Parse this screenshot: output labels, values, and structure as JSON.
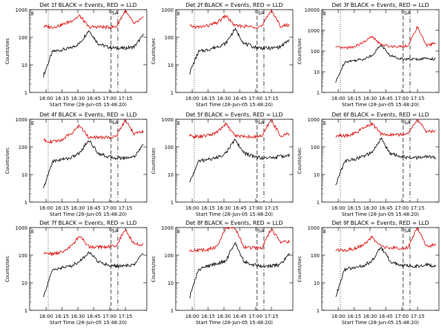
{
  "chart_data": [
    {
      "type": "line",
      "title": "Det 1f BLACK = Events, RED = LLD",
      "xlabel": "Start Time (28-Jun-05 15:48:20)",
      "ylabel": "Counts/sec",
      "ylim": [
        1,
        1000
      ],
      "yscale": "log",
      "x_ticks": [
        "16:00",
        "16:15",
        "16:30",
        "16:45",
        "17:00",
        "17:15"
      ],
      "y_ticks": [
        "1",
        "10",
        "100",
        "1000"
      ],
      "series": [
        {
          "name": "Events",
          "color": "#000000",
          "values": [
            4,
            30,
            35,
            40,
            60,
            180,
            60,
            45,
            40,
            40,
            45,
            120
          ]
        },
        {
          "name": "LLD",
          "color": "#dd0000",
          "values": [
            250,
            230,
            280,
            380,
            600,
            230,
            240,
            230,
            240,
            900,
            300,
            500
          ]
        }
      ],
      "flags": [
        "SA",
        "E"
      ]
    },
    {
      "type": "line",
      "title": "Det 2f BLACK = Events, RED = LLD",
      "xlabel": "Start Time (28-Jun-05 15:48:20)",
      "ylabel": "Counts/sec",
      "ylim": [
        1,
        1000
      ],
      "yscale": "log",
      "x_ticks": [
        "16:00",
        "16:15",
        "16:30",
        "16:45",
        "17:00",
        "17:15"
      ],
      "y_ticks": [
        "1",
        "10",
        "100",
        "1000"
      ],
      "series": [
        {
          "name": "Events",
          "color": "#000000",
          "values": [
            5,
            30,
            35,
            45,
            60,
            200,
            60,
            45,
            40,
            40,
            45,
            80
          ]
        },
        {
          "name": "LLD",
          "color": "#dd0000",
          "values": [
            250,
            230,
            260,
            330,
            600,
            260,
            250,
            240,
            250,
            1000,
            250,
            280
          ]
        }
      ],
      "flags": [
        "SA",
        "E"
      ]
    },
    {
      "type": "line",
      "title": "Det 3f BLACK = Events, RED = LLD",
      "xlabel": "Start Time (28-Jun-05 15:48:20)",
      "ylabel": "Counts/sec",
      "ylim": [
        1,
        10000
      ],
      "yscale": "log",
      "x_ticks": [
        "16:00",
        "16:15",
        "16:30",
        "16:45",
        "17:00",
        "17:15"
      ],
      "y_ticks": [
        "1",
        "10",
        "100",
        "1000",
        "10000"
      ],
      "series": [
        {
          "name": "Events",
          "color": "#000000",
          "values": [
            3,
            30,
            35,
            40,
            60,
            200,
            60,
            45,
            40,
            40,
            45,
            40
          ]
        },
        {
          "name": "LLD",
          "color": "#dd0000",
          "values": [
            150,
            140,
            160,
            250,
            500,
            200,
            170,
            170,
            180,
            1500,
            180,
            250
          ]
        }
      ],
      "flags": [
        "SA",
        "E"
      ]
    },
    {
      "type": "line",
      "title": "Det 4f BLACK = Events, RED = LLD",
      "xlabel": "Start Time (28-Jun-05 15:48:20)",
      "ylabel": "Counts/sec",
      "ylim": [
        1,
        1000
      ],
      "yscale": "log",
      "x_ticks": [
        "16:00",
        "16:15",
        "16:30",
        "16:45",
        "17:00",
        "17:15"
      ],
      "y_ticks": [
        "1",
        "10",
        "100",
        "1000"
      ],
      "series": [
        {
          "name": "Events",
          "color": "#000000",
          "values": [
            3,
            30,
            35,
            40,
            60,
            180,
            60,
            45,
            40,
            40,
            45,
            120
          ]
        },
        {
          "name": "LLD",
          "color": "#dd0000",
          "values": [
            180,
            150,
            180,
            300,
            600,
            220,
            220,
            220,
            240,
            900,
            300,
            350
          ]
        }
      ],
      "flags": [
        "SA",
        "E"
      ]
    },
    {
      "type": "line",
      "title": "Det 5f BLACK = Events, RED = LLD",
      "xlabel": "Start Time (28-Jun-05 15:48:20)",
      "ylabel": "Counts/sec",
      "ylim": [
        1,
        1000
      ],
      "yscale": "log",
      "x_ticks": [
        "16:00",
        "16:15",
        "16:30",
        "16:45",
        "17:00",
        "17:15"
      ],
      "y_ticks": [
        "1",
        "10",
        "100",
        "1000"
      ],
      "series": [
        {
          "name": "Events",
          "color": "#000000",
          "values": [
            5,
            30,
            35,
            40,
            60,
            180,
            60,
            45,
            40,
            40,
            45,
            50
          ]
        },
        {
          "name": "LLD",
          "color": "#dd0000",
          "values": [
            250,
            230,
            260,
            330,
            700,
            260,
            240,
            230,
            250,
            1000,
            250,
            300
          ]
        }
      ],
      "flags": [
        "SA",
        "E"
      ]
    },
    {
      "type": "line",
      "title": "Det 6f BLACK = Events, RED = LLD",
      "xlabel": "Start Time (28-Jun-05 15:48:20)",
      "ylabel": "Counts/sec",
      "ylim": [
        1,
        1000
      ],
      "yscale": "log",
      "x_ticks": [
        "16:00",
        "16:15",
        "16:30",
        "16:45",
        "17:00",
        "17:15"
      ],
      "y_ticks": [
        "1",
        "10",
        "100",
        "1000"
      ],
      "series": [
        {
          "name": "Events",
          "color": "#000000",
          "values": [
            4,
            30,
            35,
            45,
            60,
            200,
            60,
            45,
            40,
            40,
            45,
            40
          ]
        },
        {
          "name": "LLD",
          "color": "#dd0000",
          "values": [
            250,
            250,
            300,
            450,
            700,
            300,
            280,
            280,
            300,
            1000,
            350,
            400
          ]
        }
      ],
      "flags": [
        "SA",
        "E"
      ]
    },
    {
      "type": "line",
      "title": "Det 7f BLACK = Events, RED = LLD",
      "xlabel": "Start Time (28-Jun-05 15:48:20)",
      "ylabel": "Counts/sec",
      "ylim": [
        1,
        1000
      ],
      "yscale": "log",
      "x_ticks": [
        "16:00",
        "16:15",
        "16:30",
        "16:45",
        "17:00",
        "17:15"
      ],
      "y_ticks": [
        "1",
        "10",
        "100",
        "1000"
      ],
      "series": [
        {
          "name": "Events",
          "color": "#000000",
          "values": [
            3,
            30,
            35,
            40,
            60,
            130,
            60,
            45,
            40,
            40,
            45,
            120
          ]
        },
        {
          "name": "LLD",
          "color": "#dd0000",
          "values": [
            120,
            110,
            130,
            200,
            500,
            200,
            200,
            200,
            210,
            900,
            250,
            250
          ]
        }
      ],
      "flags": [
        "SA",
        "E"
      ]
    },
    {
      "type": "line",
      "title": "Det 8f BLACK = Events, RED = LLD",
      "xlabel": "Start Time (28-Jun-05 15:48:20)",
      "ylabel": "Counts/sec",
      "ylim": [
        1,
        1000
      ],
      "yscale": "log",
      "x_ticks": [
        "16:00",
        "16:15",
        "16:30",
        "16:45",
        "17:00",
        "17:15"
      ],
      "y_ticks": [
        "1",
        "10",
        "100",
        "1000"
      ],
      "series": [
        {
          "name": "Events",
          "color": "#000000",
          "values": [
            3,
            30,
            40,
            50,
            60,
            300,
            60,
            45,
            40,
            40,
            45,
            110
          ]
        },
        {
          "name": "LLD",
          "color": "#dd0000",
          "values": [
            150,
            150,
            160,
            200,
            1000,
            1000,
            200,
            180,
            180,
            900,
            300,
            300
          ]
        }
      ],
      "flags": [
        "SA",
        "E"
      ]
    },
    {
      "type": "line",
      "title": "Det 9f BLACK = Events, RED = LLD",
      "xlabel": "Start Time (28-Jun-05 15:48:20)",
      "ylabel": "Counts/sec",
      "ylim": [
        1,
        1000
      ],
      "yscale": "log",
      "x_ticks": [
        "16:00",
        "16:15",
        "16:30",
        "16:45",
        "17:00",
        "17:15"
      ],
      "y_ticks": [
        "1",
        "10",
        "100",
        "1000"
      ],
      "series": [
        {
          "name": "Events",
          "color": "#000000",
          "values": [
            3,
            30,
            35,
            40,
            60,
            200,
            60,
            45,
            40,
            40,
            45,
            40
          ]
        },
        {
          "name": "LLD",
          "color": "#dd0000",
          "values": [
            160,
            150,
            170,
            230,
            450,
            200,
            180,
            180,
            190,
            1000,
            200,
            250
          ]
        }
      ],
      "flags": [
        "SA",
        "E"
      ]
    }
  ]
}
